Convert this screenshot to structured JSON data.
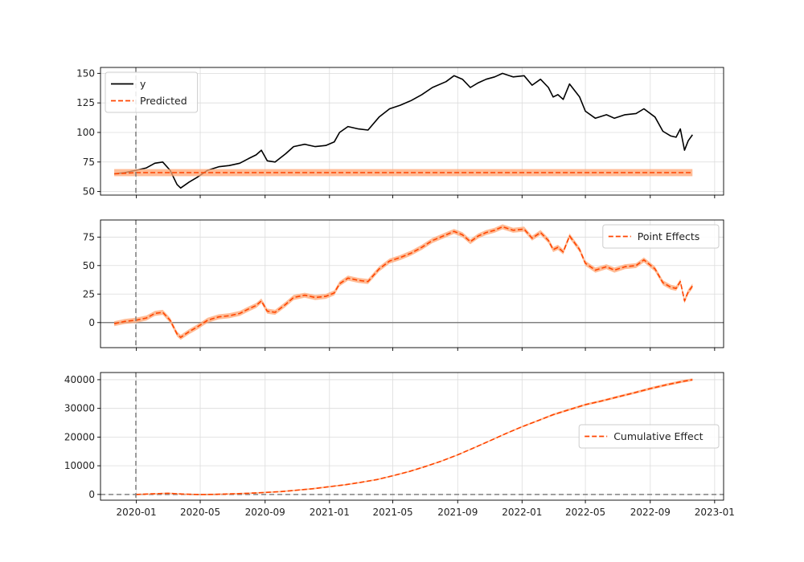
{
  "chart_data": [
    {
      "type": "line",
      "panel": "original",
      "ylim": [
        47,
        155
      ],
      "yticks": [
        50,
        75,
        100,
        125,
        150
      ],
      "grid": true,
      "legend_position": "top-left",
      "intervention_date": "2019-12-31",
      "series": [
        {
          "name": "y",
          "style": "solid",
          "color": "#000000",
          "points": [
            [
              "2019-11-20",
              65
            ],
            [
              "2019-12-10",
              66
            ],
            [
              "2019-12-31",
              68
            ],
            [
              "2020-01-20",
              70
            ],
            [
              "2020-02-05",
              74
            ],
            [
              "2020-02-20",
              75
            ],
            [
              "2020-03-05",
              68
            ],
            [
              "2020-03-18",
              56
            ],
            [
              "2020-03-25",
              53
            ],
            [
              "2020-04-10",
              58
            ],
            [
              "2020-04-25",
              62
            ],
            [
              "2020-05-15",
              68
            ],
            [
              "2020-06-05",
              71
            ],
            [
              "2020-06-25",
              72
            ],
            [
              "2020-07-15",
              74
            ],
            [
              "2020-08-01",
              78
            ],
            [
              "2020-08-15",
              81
            ],
            [
              "2020-08-25",
              85
            ],
            [
              "2020-09-05",
              76
            ],
            [
              "2020-09-20",
              75
            ],
            [
              "2020-10-10",
              82
            ],
            [
              "2020-10-25",
              88
            ],
            [
              "2020-11-15",
              90
            ],
            [
              "2020-12-05",
              88
            ],
            [
              "2020-12-25",
              89
            ],
            [
              "2021-01-10",
              92
            ],
            [
              "2021-01-20",
              100
            ],
            [
              "2021-02-05",
              105
            ],
            [
              "2021-02-25",
              103
            ],
            [
              "2021-03-15",
              102
            ],
            [
              "2021-04-05",
              113
            ],
            [
              "2021-04-25",
              120
            ],
            [
              "2021-05-15",
              123
            ],
            [
              "2021-06-05",
              127
            ],
            [
              "2021-06-25",
              132
            ],
            [
              "2021-07-15",
              138
            ],
            [
              "2021-08-10",
              143
            ],
            [
              "2021-08-25",
              148
            ],
            [
              "2021-09-10",
              145
            ],
            [
              "2021-09-25",
              138
            ],
            [
              "2021-10-10",
              142
            ],
            [
              "2021-10-25",
              145
            ],
            [
              "2021-11-10",
              147
            ],
            [
              "2021-11-25",
              150
            ],
            [
              "2021-12-15",
              147
            ],
            [
              "2022-01-05",
              148
            ],
            [
              "2022-01-20",
              140
            ],
            [
              "2022-02-05",
              145
            ],
            [
              "2022-02-20",
              138
            ],
            [
              "2022-03-01",
              130
            ],
            [
              "2022-03-10",
              132
            ],
            [
              "2022-03-20",
              128
            ],
            [
              "2022-04-01",
              141
            ],
            [
              "2022-04-20",
              130
            ],
            [
              "2022-05-01",
              118
            ],
            [
              "2022-05-20",
              112
            ],
            [
              "2022-06-10",
              115
            ],
            [
              "2022-06-25",
              112
            ],
            [
              "2022-07-15",
              115
            ],
            [
              "2022-08-05",
              116
            ],
            [
              "2022-08-20",
              120
            ],
            [
              "2022-09-10",
              113
            ],
            [
              "2022-09-25",
              101
            ],
            [
              "2022-10-10",
              97
            ],
            [
              "2022-10-20",
              96
            ],
            [
              "2022-10-28",
              103
            ],
            [
              "2022-11-05",
              85
            ],
            [
              "2022-11-12",
              93
            ],
            [
              "2022-11-20",
              98
            ]
          ]
        },
        {
          "name": "Predicted",
          "style": "dashed",
          "color": "#ff4500",
          "interval_color": "#ffa573",
          "constant": 66,
          "interval": [
            63,
            69
          ],
          "points": [
            [
              "2019-11-20",
              65
            ],
            [
              "2019-12-31",
              66
            ],
            [
              "2022-11-20",
              66
            ]
          ]
        }
      ]
    },
    {
      "type": "line",
      "panel": "pointwise",
      "ylim": [
        -22,
        90
      ],
      "yticks": [
        0,
        25,
        50,
        75
      ],
      "grid": true,
      "legend_position": "top-right",
      "reference_line": 0,
      "series": [
        {
          "name": "Point Effects",
          "style": "dashed",
          "color": "#ff4500",
          "interval_color": "#ffa573",
          "points": [
            [
              "2019-11-20",
              -1
            ],
            [
              "2019-12-10",
              1
            ],
            [
              "2019-12-31",
              2
            ],
            [
              "2020-01-20",
              4
            ],
            [
              "2020-02-05",
              8
            ],
            [
              "2020-02-20",
              9
            ],
            [
              "2020-03-05",
              2
            ],
            [
              "2020-03-18",
              -10
            ],
            [
              "2020-03-25",
              -13
            ],
            [
              "2020-04-10",
              -8
            ],
            [
              "2020-04-25",
              -4
            ],
            [
              "2020-05-15",
              2
            ],
            [
              "2020-06-05",
              5
            ],
            [
              "2020-06-25",
              6
            ],
            [
              "2020-07-15",
              8
            ],
            [
              "2020-08-01",
              12
            ],
            [
              "2020-08-15",
              15
            ],
            [
              "2020-08-25",
              19
            ],
            [
              "2020-09-05",
              10
            ],
            [
              "2020-09-20",
              9
            ],
            [
              "2020-10-10",
              16
            ],
            [
              "2020-10-25",
              22
            ],
            [
              "2020-11-15",
              24
            ],
            [
              "2020-12-05",
              22
            ],
            [
              "2020-12-25",
              23
            ],
            [
              "2021-01-10",
              26
            ],
            [
              "2021-01-20",
              34
            ],
            [
              "2021-02-05",
              39
            ],
            [
              "2021-02-25",
              37
            ],
            [
              "2021-03-15",
              36
            ],
            [
              "2021-04-05",
              47
            ],
            [
              "2021-04-25",
              54
            ],
            [
              "2021-05-15",
              57
            ],
            [
              "2021-06-05",
              61
            ],
            [
              "2021-06-25",
              66
            ],
            [
              "2021-07-15",
              72
            ],
            [
              "2021-08-10",
              77
            ],
            [
              "2021-08-25",
              80
            ],
            [
              "2021-09-10",
              77
            ],
            [
              "2021-09-25",
              71
            ],
            [
              "2021-10-10",
              76
            ],
            [
              "2021-10-25",
              79
            ],
            [
              "2021-11-10",
              81
            ],
            [
              "2021-11-25",
              84
            ],
            [
              "2021-12-15",
              81
            ],
            [
              "2022-01-05",
              82
            ],
            [
              "2022-01-20",
              74
            ],
            [
              "2022-02-05",
              79
            ],
            [
              "2022-02-20",
              72
            ],
            [
              "2022-03-01",
              64
            ],
            [
              "2022-03-10",
              66
            ],
            [
              "2022-03-20",
              62
            ],
            [
              "2022-04-01",
              76
            ],
            [
              "2022-04-20",
              64
            ],
            [
              "2022-05-01",
              52
            ],
            [
              "2022-05-20",
              46
            ],
            [
              "2022-06-10",
              49
            ],
            [
              "2022-06-25",
              46
            ],
            [
              "2022-07-15",
              49
            ],
            [
              "2022-08-05",
              50
            ],
            [
              "2022-08-20",
              55
            ],
            [
              "2022-09-10",
              47
            ],
            [
              "2022-09-25",
              35
            ],
            [
              "2022-10-10",
              31
            ],
            [
              "2022-10-20",
              30
            ],
            [
              "2022-10-28",
              36
            ],
            [
              "2022-11-05",
              19
            ],
            [
              "2022-11-12",
              27
            ],
            [
              "2022-11-20",
              32
            ]
          ]
        }
      ]
    },
    {
      "type": "line",
      "panel": "cumulative",
      "ylim": [
        -2000,
        42500
      ],
      "yticks": [
        0,
        10000,
        20000,
        30000,
        40000
      ],
      "grid": true,
      "legend_position": "center-right",
      "reference_line": 0,
      "xlabel": "",
      "xticks": [
        "2020-01",
        "2020-05",
        "2020-09",
        "2021-01",
        "2021-05",
        "2021-09",
        "2022-01",
        "2022-05",
        "2022-09",
        "2023-01"
      ],
      "series": [
        {
          "name": "Cumulative Effect",
          "style": "dashed",
          "color": "#ff4500",
          "interval_color": "#ffa573",
          "points": [
            [
              "2019-12-31",
              0
            ],
            [
              "2020-02-01",
              200
            ],
            [
              "2020-03-01",
              400
            ],
            [
              "2020-04-01",
              100
            ],
            [
              "2020-05-01",
              -50
            ],
            [
              "2020-06-01",
              50
            ],
            [
              "2020-07-01",
              200
            ],
            [
              "2020-08-01",
              400
            ],
            [
              "2020-09-01",
              700
            ],
            [
              "2020-10-01",
              1000
            ],
            [
              "2020-11-01",
              1500
            ],
            [
              "2020-12-01",
              2000
            ],
            [
              "2021-01-01",
              2700
            ],
            [
              "2021-02-01",
              3400
            ],
            [
              "2021-03-01",
              4200
            ],
            [
              "2021-04-01",
              5200
            ],
            [
              "2021-05-01",
              6500
            ],
            [
              "2021-06-01",
              8000
            ],
            [
              "2021-07-01",
              9700
            ],
            [
              "2021-08-01",
              11600
            ],
            [
              "2021-09-01",
              13800
            ],
            [
              "2021-10-01",
              16200
            ],
            [
              "2021-11-01",
              18700
            ],
            [
              "2021-12-01",
              21200
            ],
            [
              "2022-01-01",
              23600
            ],
            [
              "2022-02-01",
              25800
            ],
            [
              "2022-03-01",
              27800
            ],
            [
              "2022-04-01",
              29600
            ],
            [
              "2022-05-01",
              31300
            ],
            [
              "2022-06-01",
              32600
            ],
            [
              "2022-07-01",
              34000
            ],
            [
              "2022-08-01",
              35400
            ],
            [
              "2022-09-01",
              36900
            ],
            [
              "2022-10-01",
              38200
            ],
            [
              "2022-11-01",
              39400
            ],
            [
              "2022-11-20",
              40000
            ]
          ]
        }
      ]
    }
  ]
}
